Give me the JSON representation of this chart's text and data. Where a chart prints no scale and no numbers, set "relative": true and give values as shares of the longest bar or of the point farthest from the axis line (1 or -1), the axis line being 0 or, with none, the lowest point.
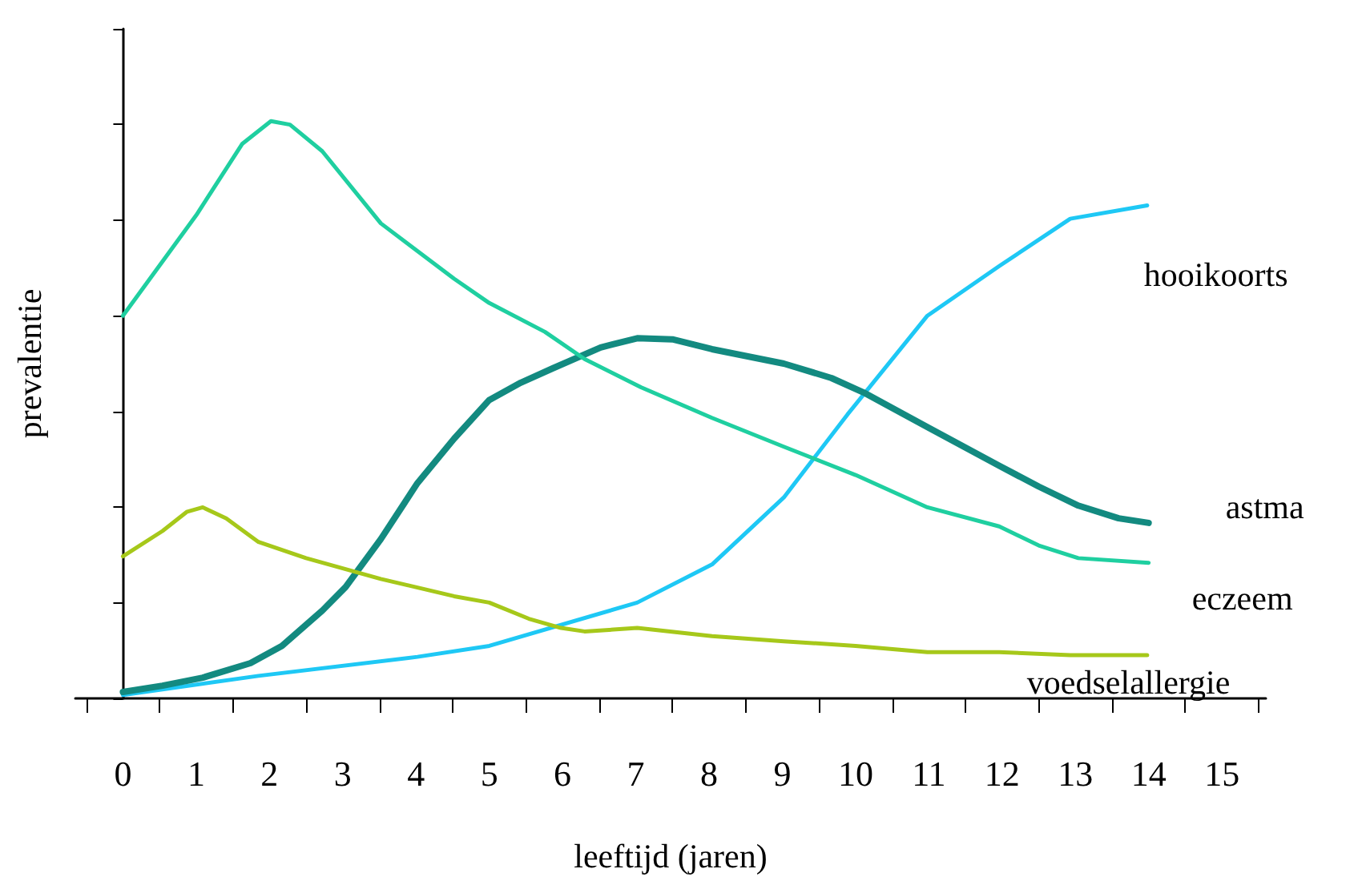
{
  "chart_data": {
    "type": "line",
    "relative": true,
    "xlabel": "leeftijd (jaren)",
    "ylabel": "prevalentie",
    "xlim": [
      -0.65,
      15.6
    ],
    "xticks": [
      0,
      1,
      2,
      3,
      4,
      5,
      6,
      7,
      8,
      9,
      10,
      11,
      12,
      13,
      14,
      15,
      {
        "value": -0.5,
        "label": null
      },
      {
        "value": 0.5,
        "label": null
      },
      {
        "value": 1.5,
        "label": null
      },
      {
        "value": 2.5,
        "label": null
      },
      {
        "value": 3.5,
        "label": null
      },
      {
        "value": 4.5,
        "label": null
      },
      {
        "value": 5.5,
        "label": null
      },
      {
        "value": 6.5,
        "label": null
      },
      {
        "value": 7.5,
        "label": null
      },
      {
        "value": 8.5,
        "label": null
      },
      {
        "value": 9.5,
        "label": null
      },
      {
        "value": 10.5,
        "label": null
      },
      {
        "value": 11.5,
        "label": null
      },
      {
        "value": 12.5,
        "label": null
      },
      {
        "value": 13.5,
        "label": null
      },
      {
        "value": 14.5,
        "label": null
      },
      {
        "value": 15.5,
        "label": null
      }
    ],
    "legend": false,
    "marker": "none",
    "line_style": "solid",
    "series": [
      {
        "name": "hooikoorts",
        "color": "#1ec8f5",
        "x": [
          0,
          1.85,
          4.02,
          5,
          7.02,
          8.04,
          9.02,
          9.89,
          10.98,
          11.96,
          12.93,
          13.98
        ],
        "values": [
          0.006,
          0.039,
          0.072,
          0.091,
          0.166,
          0.232,
          0.348,
          0.492,
          0.663,
          0.749,
          0.831,
          0.854
        ]
      },
      {
        "name": "astma",
        "color": "#138a80",
        "x": [
          0,
          0.54,
          1.09,
          1.74,
          2.17,
          2.72,
          3.04,
          3.52,
          4.02,
          4.52,
          5,
          5.43,
          5.87,
          6.52,
          7.02,
          7.5,
          8.04,
          9.02,
          9.67,
          10.11,
          10.98,
          11.96,
          12.5,
          13.04,
          13.59,
          14
        ],
        "values": [
          0.011,
          0.022,
          0.036,
          0.061,
          0.091,
          0.152,
          0.193,
          0.276,
          0.373,
          0.45,
          0.517,
          0.547,
          0.572,
          0.608,
          0.624,
          0.622,
          0.605,
          0.58,
          0.555,
          0.53,
          0.47,
          0.403,
          0.367,
          0.334,
          0.312,
          0.304
        ]
      },
      {
        "name": "eczeem",
        "color": "#1fcfa0",
        "x": [
          0,
          1,
          1.63,
          2.02,
          2.28,
          2.72,
          3.52,
          4.52,
          5,
          5.76,
          6.3,
          7.07,
          8.04,
          9.02,
          10,
          10.98,
          11.96,
          12.5,
          13.04,
          14
        ],
        "values": [
          0.663,
          0.837,
          0.961,
          1,
          0.994,
          0.948,
          0.823,
          0.727,
          0.685,
          0.635,
          0.588,
          0.539,
          0.486,
          0.436,
          0.387,
          0.331,
          0.298,
          0.265,
          0.243,
          0.235
        ]
      },
      {
        "name": "voedselallergie",
        "color": "#a6c81a",
        "x": [
          0,
          0.54,
          0.87,
          1.09,
          1.41,
          1.85,
          2.5,
          3.52,
          4.52,
          5,
          5.54,
          5.98,
          6.3,
          7.02,
          8.04,
          9.02,
          10,
          10.98,
          11.96,
          12.93,
          13.98
        ],
        "values": [
          0.246,
          0.29,
          0.323,
          0.331,
          0.312,
          0.271,
          0.243,
          0.207,
          0.177,
          0.166,
          0.138,
          0.122,
          0.116,
          0.122,
          0.108,
          0.099,
          0.091,
          0.08,
          0.08,
          0.075,
          0.075
        ]
      }
    ]
  }
}
